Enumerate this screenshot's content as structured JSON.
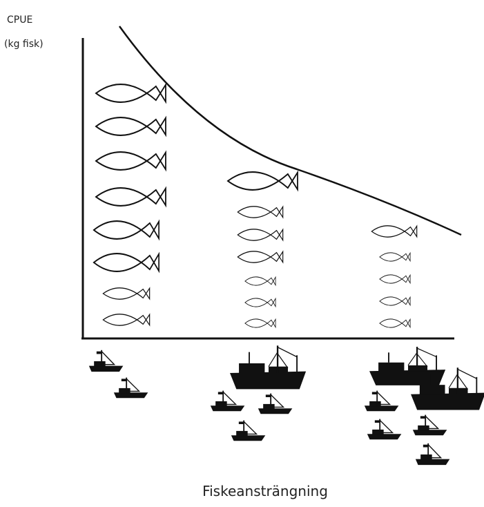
{
  "y_axis": {
    "label": "CPUE",
    "unit": "(kg fisk)"
  },
  "x_axis": {
    "label": "Fiskeansträngning"
  }
}
